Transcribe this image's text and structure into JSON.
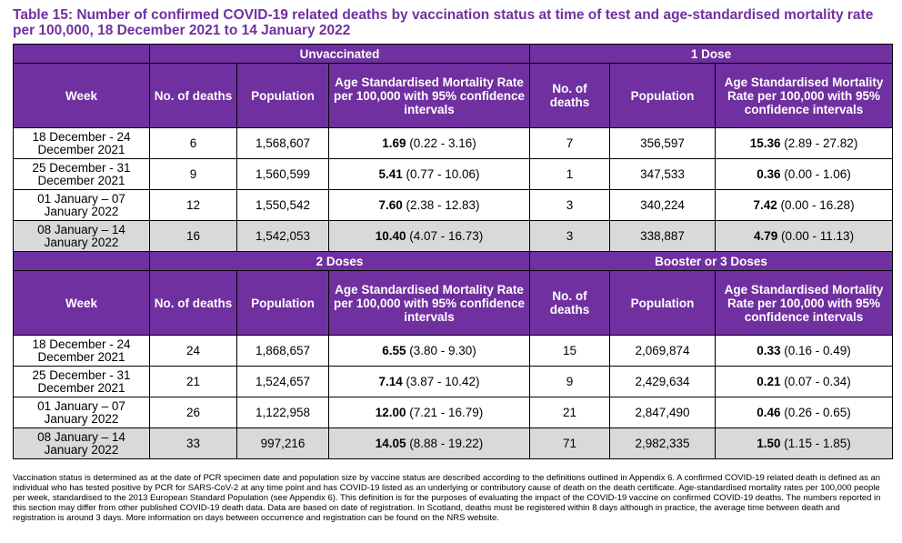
{
  "title": "Table 15: Number of confirmed COVID-19 related deaths by vaccination status at time of test and age-standardised mortality rate per 100,000, 18 December 2021 to 14 January 2022",
  "section_top": {
    "group_left": "Unvaccinated",
    "group_right": "1 Dose",
    "headers": [
      "Week",
      "No. of deaths",
      "Population",
      "Age Standardised Mortality Rate per 100,000 with 95% confidence intervals",
      "No. of deaths",
      "Population",
      "Age Standardised Mortality Rate per 100,000 with 95% confidence intervals"
    ],
    "rows": [
      {
        "week": "18 December - 24 December 2021",
        "d1": "6",
        "p1": "1,568,607",
        "r1": "1.69",
        "c1": "(0.22 - 3.16)",
        "d2": "7",
        "p2": "356,597",
        "r2": "15.36",
        "c2": "(2.89 - 27.82)"
      },
      {
        "week": "25 December - 31 December 2021",
        "d1": "9",
        "p1": "1,560,599",
        "r1": "5.41",
        "c1": "(0.77 - 10.06)",
        "d2": "1",
        "p2": "347,533",
        "r2": "0.36",
        "c2": "(0.00 - 1.06)"
      },
      {
        "week": "01 January – 07 January 2022",
        "d1": "12",
        "p1": "1,550,542",
        "r1": "7.60",
        "c1": "(2.38 - 12.83)",
        "d2": "3",
        "p2": "340,224",
        "r2": "7.42",
        "c2": "(0.00 - 16.28)"
      },
      {
        "week": "08 January – 14 January 2022",
        "d1": "16",
        "p1": "1,542,053",
        "r1": "10.40",
        "c1": "(4.07 - 16.73)",
        "d2": "3",
        "p2": "338,887",
        "r2": "4.79",
        "c2": "(0.00 - 11.13)"
      }
    ]
  },
  "section_bottom": {
    "group_left": "2 Doses",
    "group_right": "Booster or 3 Doses",
    "headers": [
      "Week",
      "No. of deaths",
      "Population",
      "Age Standardised Mortality Rate per 100,000 with 95% confidence intervals",
      "No. of deaths",
      "Population",
      "Age Standardised Mortality Rate per 100,000 with 95% confidence intervals"
    ],
    "rows": [
      {
        "week": "18 December - 24 December 2021",
        "d1": "24",
        "p1": "1,868,657",
        "r1": "6.55",
        "c1": "(3.80 - 9.30)",
        "d2": "15",
        "p2": "2,069,874",
        "r2": "0.33",
        "c2": "(0.16 - 0.49)"
      },
      {
        "week": "25 December - 31 December 2021",
        "d1": "21",
        "p1": "1,524,657",
        "r1": "7.14",
        "c1": "(3.87 - 10.42)",
        "d2": "9",
        "p2": "2,429,634",
        "r2": "0.21",
        "c2": "(0.07 - 0.34)"
      },
      {
        "week": "01 January – 07 January 2022",
        "d1": "26",
        "p1": "1,122,958",
        "r1": "12.00",
        "c1": "(7.21 - 16.79)",
        "d2": "21",
        "p2": "2,847,490",
        "r2": "0.46",
        "c2": "(0.26 - 0.65)"
      },
      {
        "week": "08 January – 14 January 2022",
        "d1": "33",
        "p1": "997,216",
        "r1": "14.05",
        "c1": "(8.88 - 19.22)",
        "d2": "71",
        "p2": "2,982,335",
        "r2": "1.50",
        "c2": "(1.15 - 1.85)"
      }
    ]
  },
  "footnote": "Vaccination status is determined as at the date of PCR specimen date and population size by vaccine status are described according to the definitions outlined in Appendix 6. A confirmed COVID-19 related death is defined as an individual who has tested positive by PCR for SARS-CoV-2 at any time point and has COVID-19 listed as an underlying or contributory cause of death on the death certificate. Age-standardised mortality rates per 100,000 people per week, standardised to the 2013 European Standard Population (see Appendix 6). This definition is for the purposes of evaluating the impact of the COVID-19 vaccine on confirmed COVID-19 deaths. The numbers reported in this section may differ from other published COVID-19 death data. Data are based on date of registration. In Scotland, deaths must be registered within 8 days although in practice, the average time between death and registration is around 3 days. More information on days between occurrence and registration can be found on the NRS website.",
  "colors": {
    "header_bg": "#7030a0",
    "title": "#7030a0",
    "shade": "#d9d9d9"
  }
}
